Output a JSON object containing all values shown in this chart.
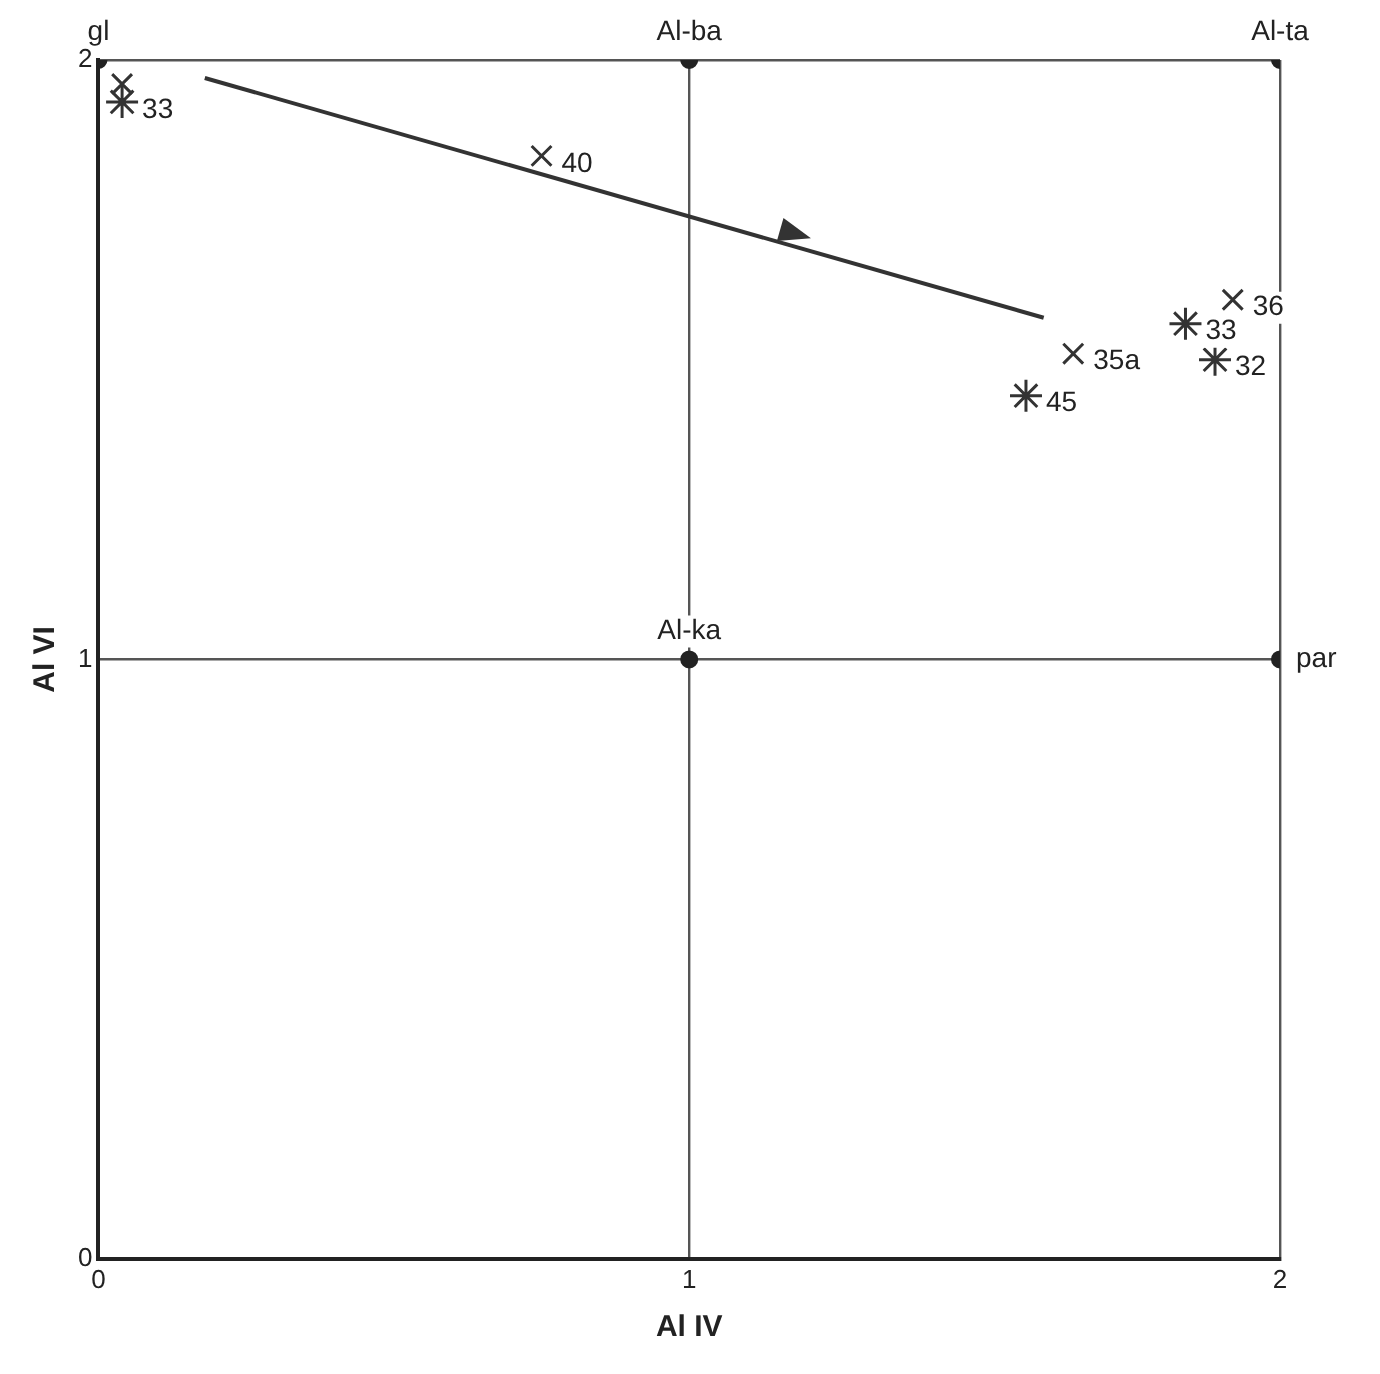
{
  "chart_data": {
    "type": "scatter",
    "xlabel": "Al IV",
    "ylabel": "Al VI",
    "xlim": [
      0,
      2
    ],
    "ylim": [
      0,
      2
    ],
    "xticks": [
      0,
      1,
      2
    ],
    "yticks": [
      0,
      1,
      2
    ],
    "grid": true,
    "legend": false,
    "series": [
      {
        "color": "#222222",
        "marker": "circle",
        "x": [
          0,
          1,
          2,
          1,
          2
        ],
        "values": [
          2,
          2,
          2,
          1,
          1
        ]
      },
      {
        "color": "#333333",
        "marker": "cross",
        "x": [
          0.75,
          1.65,
          1.92,
          0.04
        ],
        "values": [
          1.84,
          1.51,
          1.6,
          1.96
        ]
      },
      {
        "color": "#333333",
        "x": [
          1.57,
          1.84,
          1.89,
          0.04
        ],
        "values": [
          1.44,
          1.56,
          1.5,
          1.93
        ]
      }
    ],
    "annotations": [
      {
        "text": "gl",
        "x": 0,
        "y": 2
      },
      {
        "text": "Al-ba",
        "x": 1,
        "y": 2
      },
      {
        "text": "Al-ta",
        "x": 2,
        "y": 2
      },
      {
        "text": "Al-ka",
        "x": 1,
        "y": 1
      },
      {
        "text": "par",
        "x": 2,
        "y": 1
      },
      {
        "text": "40",
        "x": 0.75,
        "y": 1.84
      },
      {
        "text": "35a",
        "x": 1.65,
        "y": 1.51
      },
      {
        "text": "36",
        "x": 1.92,
        "y": 1.6
      },
      {
        "text": "45",
        "x": 1.57,
        "y": 1.44
      },
      {
        "text": "33",
        "x": 1.84,
        "y": 1.56
      },
      {
        "text": "32",
        "x": 1.89,
        "y": 1.5
      },
      {
        "text": "33",
        "x": 0.04,
        "y": 1.93
      }
    ]
  }
}
